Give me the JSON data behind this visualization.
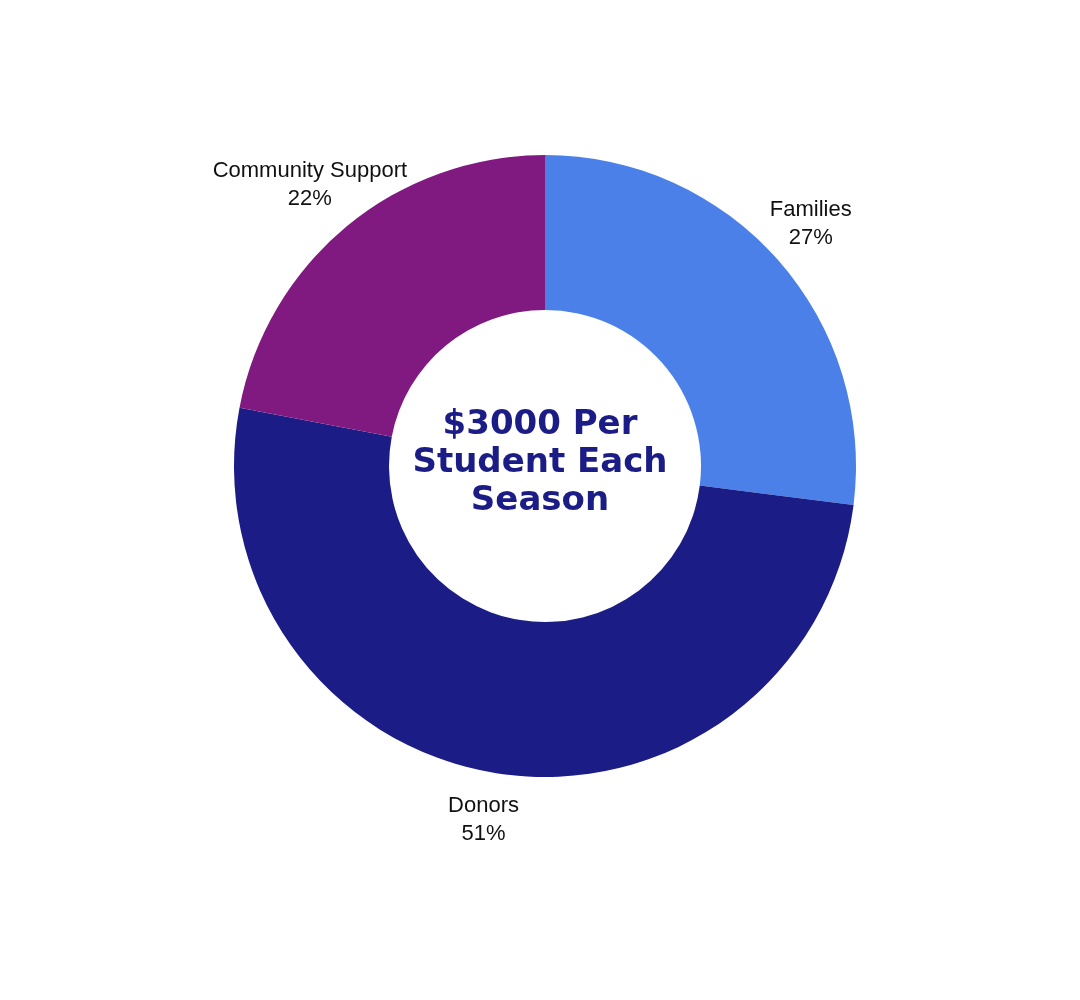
{
  "chart_data": {
    "type": "donut",
    "title": "$3000 Per Student Each Season",
    "categories": [
      "Families",
      "Donors",
      "Community Support"
    ],
    "values": [
      27,
      51,
      22
    ],
    "value_labels": [
      "27%",
      "51%",
      "22%"
    ],
    "colors": [
      "#4a80e8",
      "#1b1c85",
      "#801a80"
    ],
    "legend": false
  }
}
